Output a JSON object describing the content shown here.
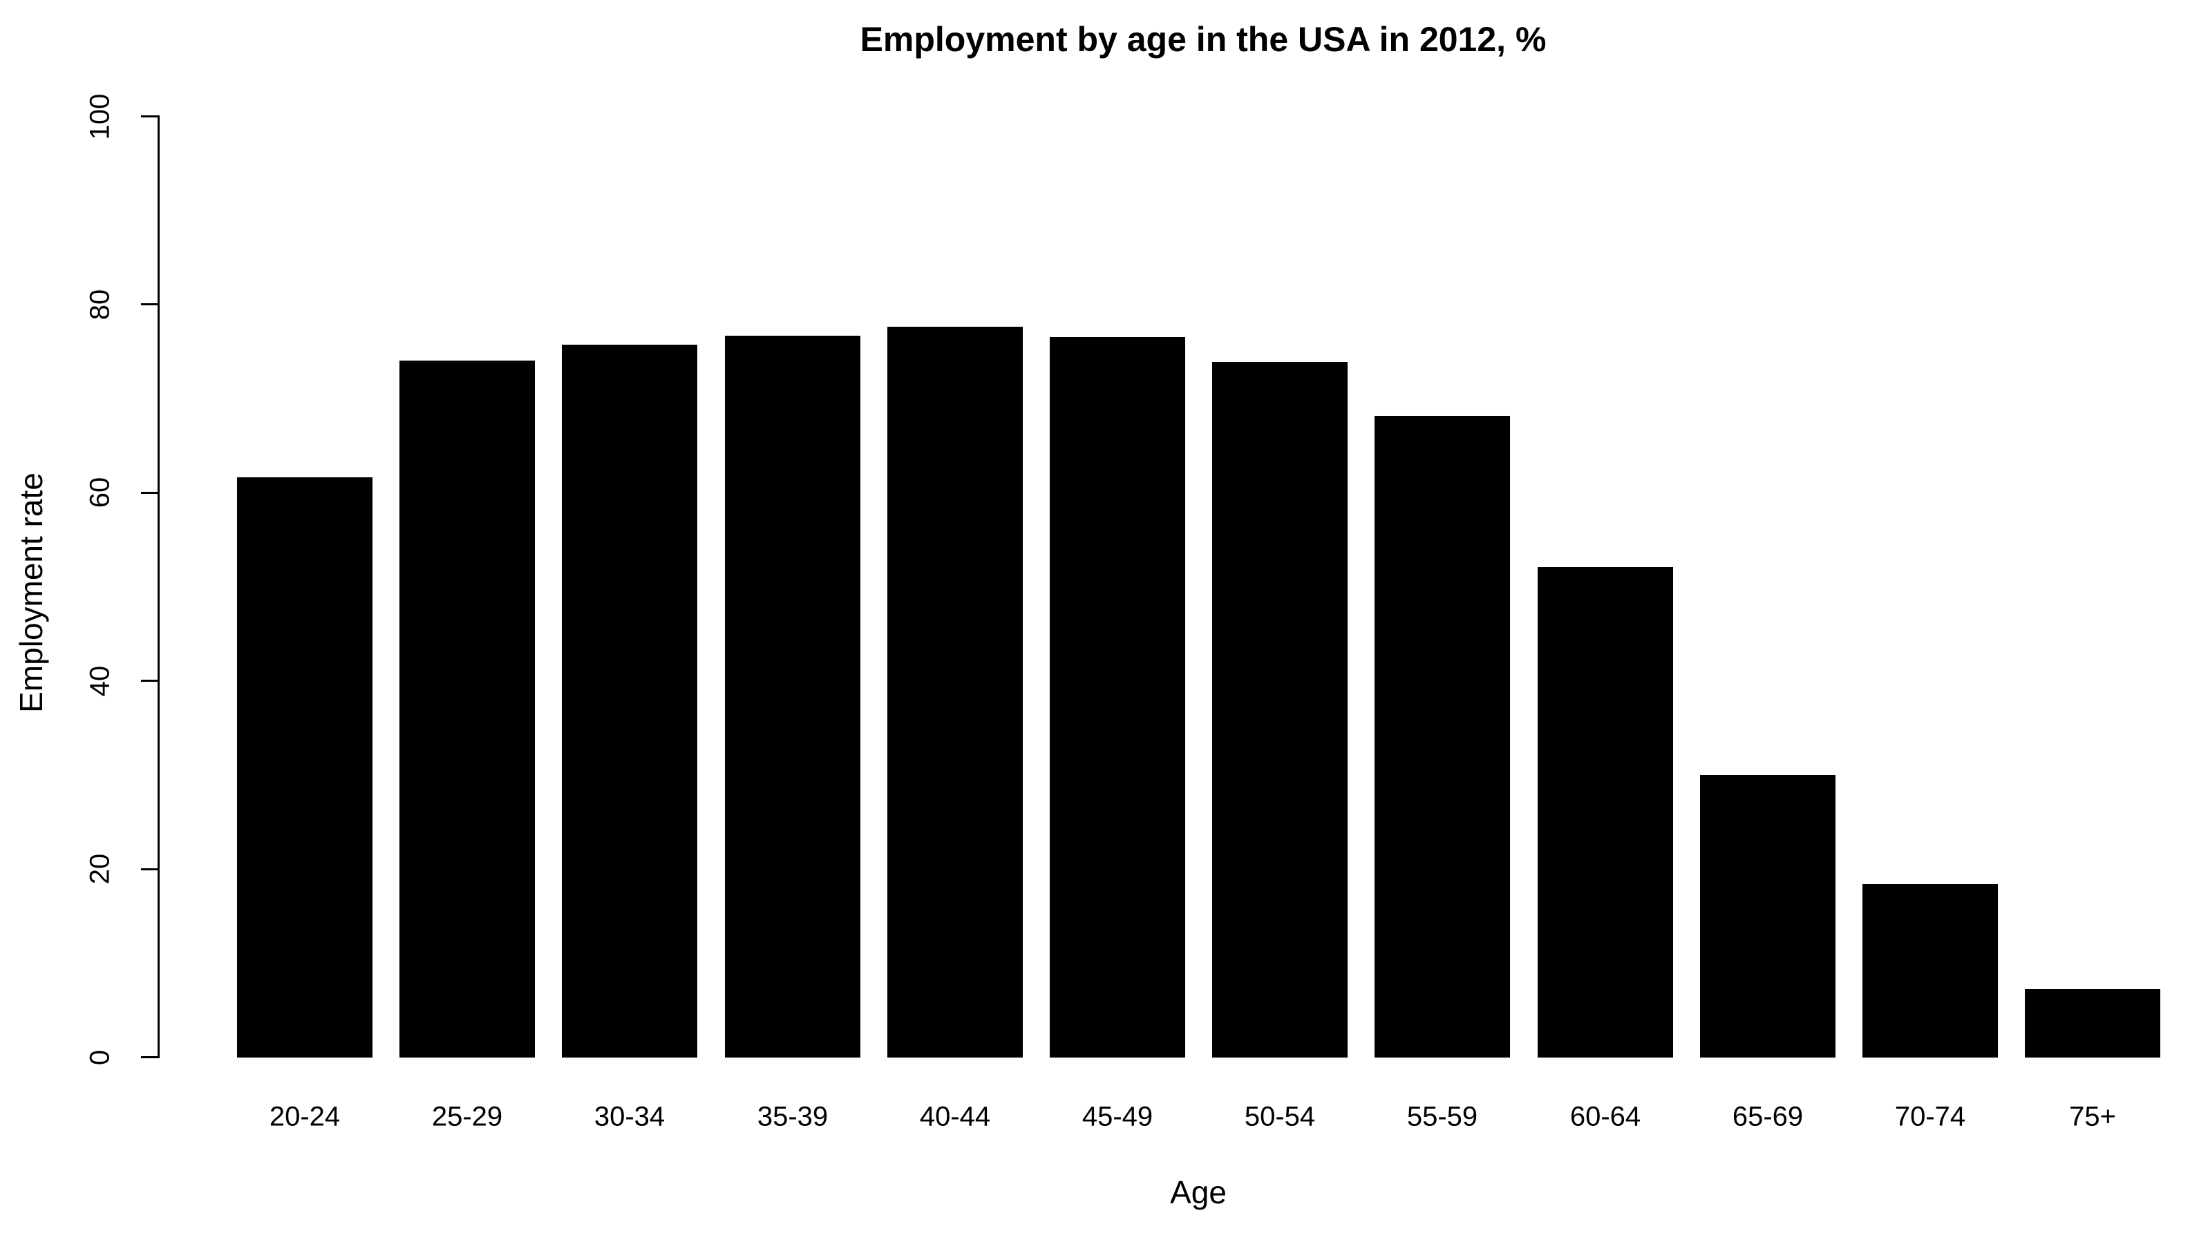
{
  "chart_data": {
    "type": "bar",
    "title": "Employment by age in the USA in 2012, %",
    "xlabel": "Age",
    "ylabel": "Employment rate",
    "categories": [
      "20-24",
      "25-29",
      "30-34",
      "35-39",
      "40-44",
      "45-49",
      "50-54",
      "55-59",
      "60-64",
      "65-69",
      "70-74",
      "75+"
    ],
    "values": [
      61.7,
      74.1,
      75.8,
      76.7,
      77.7,
      76.6,
      73.9,
      68.2,
      52.1,
      30.0,
      18.4,
      7.3
    ],
    "y_ticks": [
      0,
      20,
      40,
      60,
      80,
      100
    ],
    "ylim": [
      0,
      100
    ],
    "bar_color": "#000000",
    "text_color": "#000000",
    "background_color": "#ffffff",
    "grid": false,
    "legend": false,
    "legend_position": "none"
  }
}
